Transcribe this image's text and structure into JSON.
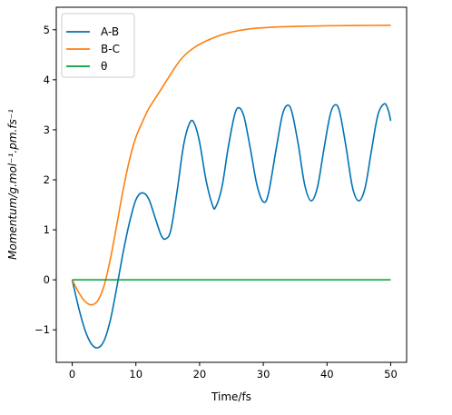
{
  "chart_data": {
    "type": "line",
    "xlabel": "Time/fs",
    "ylabel": "Momentum/g.mol⁻¹.pm.fs⁻¹",
    "xlim": [
      -2.5,
      52.5
    ],
    "ylim": [
      -1.65,
      5.45
    ],
    "xticks": [
      0,
      10,
      20,
      30,
      40,
      50
    ],
    "yticks": [
      -1,
      0,
      1,
      2,
      3,
      4,
      5
    ],
    "xtick_labels": [
      "0",
      "10",
      "20",
      "30",
      "40",
      "50"
    ],
    "ytick_labels": [
      "−1",
      "0",
      "1",
      "2",
      "3",
      "4",
      "5"
    ],
    "legend_position": "top-left",
    "grid": false,
    "series": [
      {
        "name": "A-B",
        "color": "#0072b2",
        "points": [
          [
            0,
            0
          ],
          [
            1,
            -0.55
          ],
          [
            2,
            -1.0
          ],
          [
            3,
            -1.28
          ],
          [
            4,
            -1.36
          ],
          [
            5,
            -1.22
          ],
          [
            6,
            -0.8
          ],
          [
            7,
            -0.15
          ],
          [
            8,
            0.55
          ],
          [
            9,
            1.15
          ],
          [
            10,
            1.6
          ],
          [
            11,
            1.74
          ],
          [
            12,
            1.62
          ],
          [
            13,
            1.25
          ],
          [
            14,
            0.88
          ],
          [
            14.7,
            0.82
          ],
          [
            15.5,
            1.0
          ],
          [
            16.5,
            1.8
          ],
          [
            17.5,
            2.7
          ],
          [
            18.5,
            3.15
          ],
          [
            19.2,
            3.12
          ],
          [
            20,
            2.75
          ],
          [
            21,
            2.0
          ],
          [
            22,
            1.5
          ],
          [
            22.5,
            1.45
          ],
          [
            23.5,
            1.85
          ],
          [
            24.5,
            2.65
          ],
          [
            25.5,
            3.3
          ],
          [
            26.2,
            3.44
          ],
          [
            27,
            3.25
          ],
          [
            28,
            2.6
          ],
          [
            29,
            1.9
          ],
          [
            30,
            1.56
          ],
          [
            30.8,
            1.72
          ],
          [
            32,
            2.6
          ],
          [
            33,
            3.3
          ],
          [
            33.8,
            3.49
          ],
          [
            34.5,
            3.35
          ],
          [
            35.5,
            2.7
          ],
          [
            36.5,
            1.9
          ],
          [
            37.5,
            1.58
          ],
          [
            38.5,
            1.85
          ],
          [
            39.5,
            2.6
          ],
          [
            40.5,
            3.3
          ],
          [
            41.3,
            3.5
          ],
          [
            42,
            3.35
          ],
          [
            43,
            2.65
          ],
          [
            44,
            1.85
          ],
          [
            45,
            1.58
          ],
          [
            46,
            1.85
          ],
          [
            47,
            2.6
          ],
          [
            48,
            3.3
          ],
          [
            49,
            3.52
          ],
          [
            49.6,
            3.4
          ],
          [
            50,
            3.18
          ]
        ]
      },
      {
        "name": "B-C",
        "color": "#ff7f0e",
        "points": [
          [
            0,
            0
          ],
          [
            1,
            -0.25
          ],
          [
            2,
            -0.43
          ],
          [
            3,
            -0.5
          ],
          [
            4,
            -0.42
          ],
          [
            5,
            -0.12
          ],
          [
            6,
            0.42
          ],
          [
            7,
            1.1
          ],
          [
            8,
            1.8
          ],
          [
            9,
            2.4
          ],
          [
            10,
            2.85
          ],
          [
            11,
            3.15
          ],
          [
            12,
            3.42
          ],
          [
            13,
            3.62
          ],
          [
            14,
            3.82
          ],
          [
            15,
            4.02
          ],
          [
            16,
            4.22
          ],
          [
            17,
            4.4
          ],
          [
            18,
            4.53
          ],
          [
            19,
            4.63
          ],
          [
            20,
            4.71
          ],
          [
            22,
            4.83
          ],
          [
            24,
            4.92
          ],
          [
            26,
            4.98
          ],
          [
            28,
            5.02
          ],
          [
            30,
            5.04
          ],
          [
            33,
            5.06
          ],
          [
            36,
            5.07
          ],
          [
            40,
            5.08
          ],
          [
            45,
            5.085
          ],
          [
            50,
            5.09
          ]
        ]
      },
      {
        "name": "θ",
        "color": "#009e34",
        "points": [
          [
            0,
            0
          ],
          [
            50,
            0
          ]
        ]
      }
    ]
  }
}
